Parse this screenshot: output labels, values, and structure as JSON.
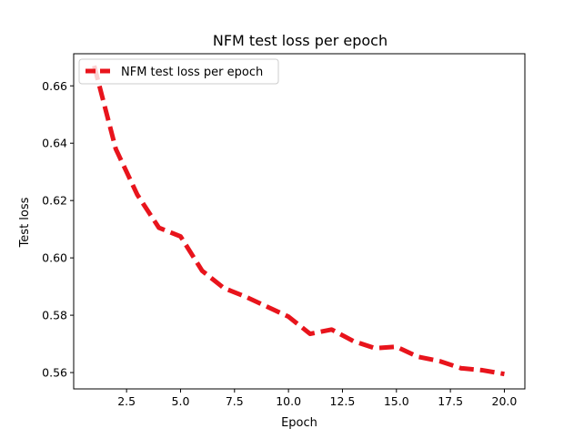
{
  "chart_data": {
    "type": "line",
    "title": "NFM test loss per epoch",
    "xlabel": "Epoch",
    "ylabel": "Test loss",
    "x": [
      1,
      2,
      3,
      4,
      5,
      6,
      7,
      8,
      9,
      10,
      11,
      12,
      13,
      14,
      15,
      16,
      17,
      18,
      19,
      20
    ],
    "series": [
      {
        "name": "NFM test loss per epoch",
        "values": [
          0.667,
          0.638,
          0.622,
          0.6105,
          0.6075,
          0.5955,
          0.5895,
          0.5865,
          0.583,
          0.5795,
          0.5735,
          0.575,
          0.571,
          0.5685,
          0.569,
          0.5655,
          0.564,
          0.5615,
          0.5608,
          0.5595
        ],
        "color": "#e8141c",
        "line_style": "dashed"
      }
    ],
    "xlim": [
      0.05,
      20.95
    ],
    "ylim": [
      0.5543,
      0.6712
    ],
    "xticks": [
      2.5,
      5.0,
      7.5,
      10.0,
      12.5,
      15.0,
      17.5,
      20.0
    ],
    "xtick_labels": [
      "2.5",
      "5.0",
      "7.5",
      "10.0",
      "12.5",
      "15.0",
      "17.5",
      "20.0"
    ],
    "yticks": [
      0.56,
      0.58,
      0.6,
      0.62,
      0.64,
      0.66
    ],
    "ytick_labels": [
      "0.56",
      "0.58",
      "0.60",
      "0.62",
      "0.64",
      "0.66"
    ],
    "grid": false,
    "legend_position": "top-left"
  }
}
